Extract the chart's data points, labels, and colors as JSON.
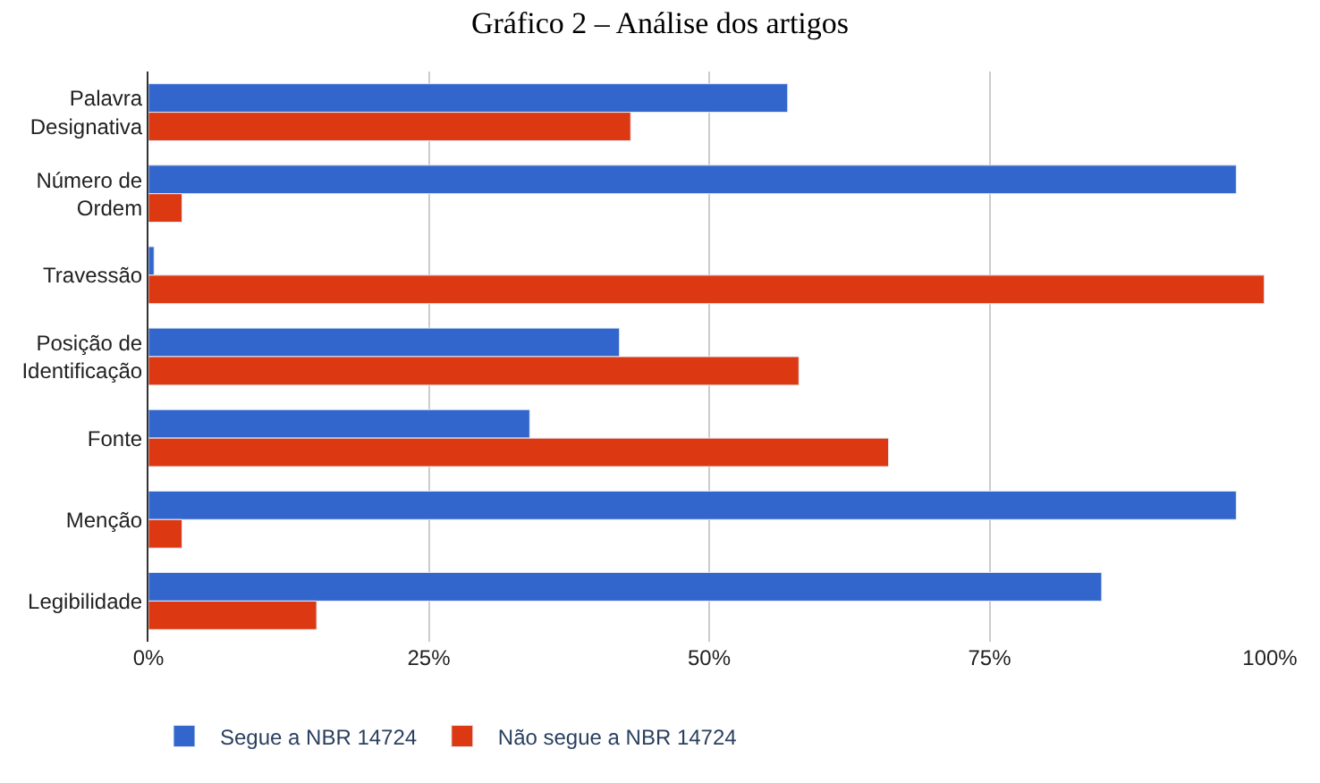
{
  "chart_data": {
    "type": "bar",
    "orientation": "horizontal",
    "title": "Gráfico 2 – Análise dos artigos",
    "categories": [
      "Palavra Designativa",
      "Número de Ordem",
      "Travessão",
      "Posição de Identificação",
      "Fonte",
      "Menção",
      "Legibilidade"
    ],
    "series": [
      {
        "name": "Segue a NBR 14724",
        "color": "#3366cc",
        "values": [
          57,
          97,
          0.5,
          42,
          34,
          97,
          85
        ]
      },
      {
        "name": "Não segue a NBR 14724",
        "color": "#dc3912",
        "values": [
          43,
          3,
          99.5,
          58,
          66,
          3,
          15
        ]
      }
    ],
    "xlim": [
      0,
      100
    ],
    "xticks": [
      {
        "value": 0,
        "label": "0%"
      },
      {
        "value": 25,
        "label": "25%"
      },
      {
        "value": 50,
        "label": "50%"
      },
      {
        "value": 75,
        "label": "75%"
      },
      {
        "value": 100,
        "label": "100%"
      }
    ],
    "grid": "x",
    "legend": "bottom"
  }
}
